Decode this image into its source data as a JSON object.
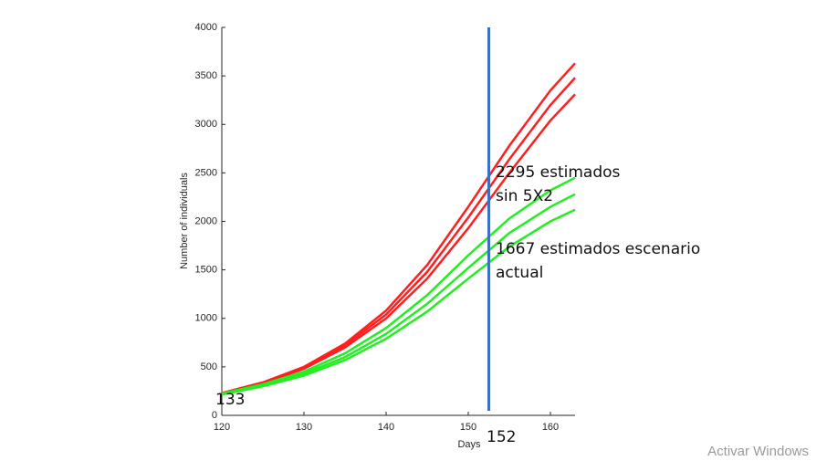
{
  "chart_data": {
    "type": "line",
    "xlabel": "Days",
    "ylabel": "Number of individuals",
    "x": [
      120,
      125,
      130,
      135,
      140,
      145,
      150,
      155,
      160,
      163
    ],
    "series": [
      {
        "color": "#ff1f1f",
        "values": [
          230,
          340,
          500,
          740,
          1080,
          1550,
          2150,
          2780,
          3350,
          3630
        ]
      },
      {
        "color": "#ff1f1f",
        "values": [
          225,
          335,
          490,
          720,
          1040,
          1480,
          2040,
          2640,
          3200,
          3480
        ]
      },
      {
        "color": "#ff1f1f",
        "values": [
          220,
          330,
          480,
          700,
          1000,
          1410,
          1930,
          2500,
          3040,
          3310
        ]
      },
      {
        "color": "#22ee22",
        "values": [
          225,
          320,
          450,
          640,
          900,
          1240,
          1650,
          2030,
          2320,
          2450
        ]
      },
      {
        "color": "#22ee22",
        "values": [
          220,
          310,
          430,
          600,
          840,
          1150,
          1520,
          1880,
          2150,
          2280
        ]
      },
      {
        "color": "#22ee22",
        "values": [
          215,
          300,
          410,
          570,
          790,
          1070,
          1410,
          1740,
          2000,
          2120
        ]
      }
    ],
    "vline": {
      "value": 152.5,
      "color": "#3b6fc4"
    },
    "xlim": [
      120,
      163
    ],
    "ylim": [
      0,
      4000
    ],
    "xticks": [
      120,
      130,
      140,
      150,
      160
    ],
    "yticks": [
      0,
      500,
      1000,
      1500,
      2000,
      2500,
      3000,
      3500,
      4000
    ],
    "annotations": [
      {
        "lines": [
          "2295 estimados",
          "sin 5X2"
        ]
      },
      {
        "lines": [
          "1667 estimados escenario",
          "actual"
        ]
      },
      {
        "lines": [
          "133"
        ]
      },
      {
        "lines": [
          "152"
        ]
      }
    ]
  },
  "watermark": "Activar Windows"
}
